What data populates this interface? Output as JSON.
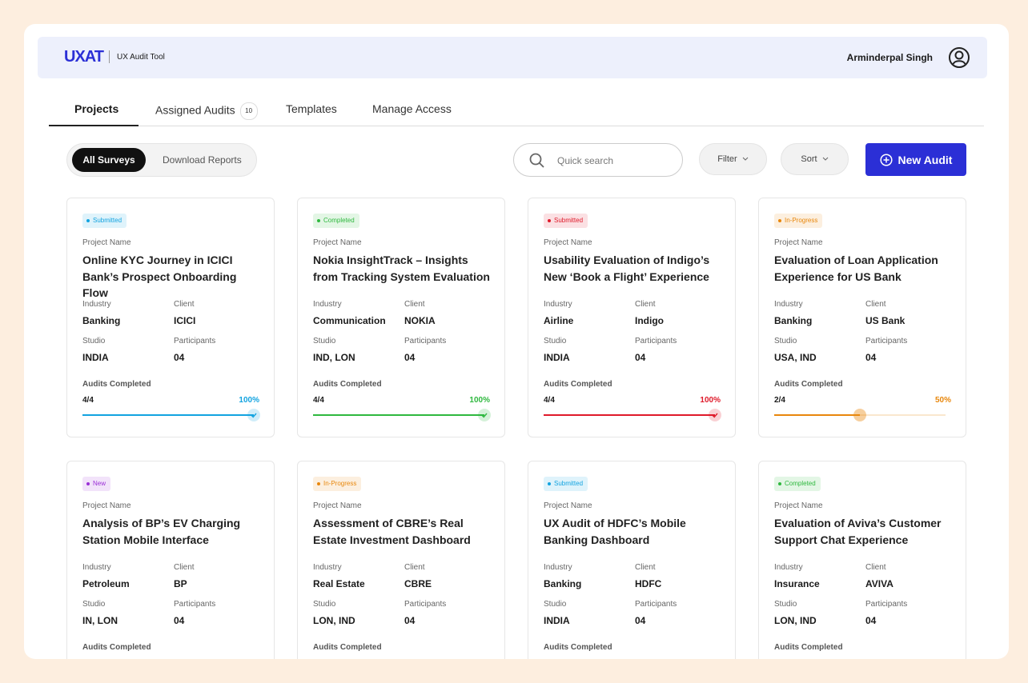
{
  "header": {
    "logo": "UXAT",
    "app_name": "UX Audit Tool",
    "user_name": "Arminderpal Singh"
  },
  "tabs": [
    {
      "label": "Projects"
    },
    {
      "label": "Assigned Audits",
      "badge": "10"
    },
    {
      "label": "Templates"
    },
    {
      "label": "Manage Access"
    }
  ],
  "toggle": [
    "All Surveys",
    "Download Reports"
  ],
  "search_placeholder": "Quick search",
  "filter": "Filter",
  "sort": "Sort",
  "new_button": "New Audit",
  "labels": {
    "project": "Project  Name",
    "industry": "Industry",
    "client": "Client",
    "studio": "Studio",
    "participants": "Participants",
    "audits_completed": "Audits Completed"
  },
  "cards": [
    {
      "status": "Submitted",
      "color": "#12a3e0",
      "title": "Online KYC Journey in ICICI Bank’s Prospect Onboarding Flow",
      "industry": "Banking",
      "client": "ICICI",
      "studio": "INDIA",
      "participants": "04",
      "completed": "4/4",
      "progress": {
        "value": 100,
        "label": "100%"
      }
    },
    {
      "status": "Completed",
      "color": "#2fb83f",
      "title": "Nokia InsightTrack – Insights from Tracking System Evaluation",
      "industry": "Communication",
      "client": "NOKIA",
      "studio": "IND, LON",
      "participants": "04",
      "completed": "4/4",
      "progress": {
        "value": 100,
        "label": "100%"
      }
    },
    {
      "status": "Submitted",
      "color": "#df1a2a",
      "title": "Usability Evaluation of Indigo’s New ‘Book a Flight’ Experience",
      "industry": "Airline",
      "client": "Indigo",
      "studio": "INDIA",
      "participants": "04",
      "completed": "4/4",
      "progress": {
        "value": 100,
        "label": "100%"
      }
    },
    {
      "status": "In-Progress",
      "color": "#e8870c",
      "title": "Evaluation of Loan Application Experience for US Bank",
      "industry": "Banking",
      "client": "US Bank",
      "studio": "USA, IND",
      "participants": "04",
      "completed": "2/4",
      "progress": {
        "value": 50,
        "label": "50%"
      }
    },
    {
      "status": "New",
      "color": "#9a2fd6",
      "title": "Analysis of BP’s EV Charging Station Mobile Interface",
      "industry": "Petroleum",
      "client": "BP",
      "studio": "IN, LON",
      "participants": "04"
    },
    {
      "status": "In-Progress",
      "color": "#e8870c",
      "title": "Assessment of CBRE’s Real Estate Investment Dashboard",
      "industry": "Real Estate",
      "client": "CBRE",
      "studio": "LON, IND",
      "participants": "04"
    },
    {
      "status": "Submitted",
      "color": "#12a3e0",
      "title": "UX Audit of HDFC’s Mobile Banking Dashboard",
      "industry": "Banking",
      "client": "HDFC",
      "studio": "INDIA",
      "participants": "04"
    },
    {
      "status": "Completed",
      "color": "#2fb83f",
      "title": "Evaluation of Aviva’s Customer Support Chat Experience",
      "industry": "Insurance",
      "client": "AVIVA",
      "studio": "LON, IND",
      "participants": "04"
    }
  ]
}
